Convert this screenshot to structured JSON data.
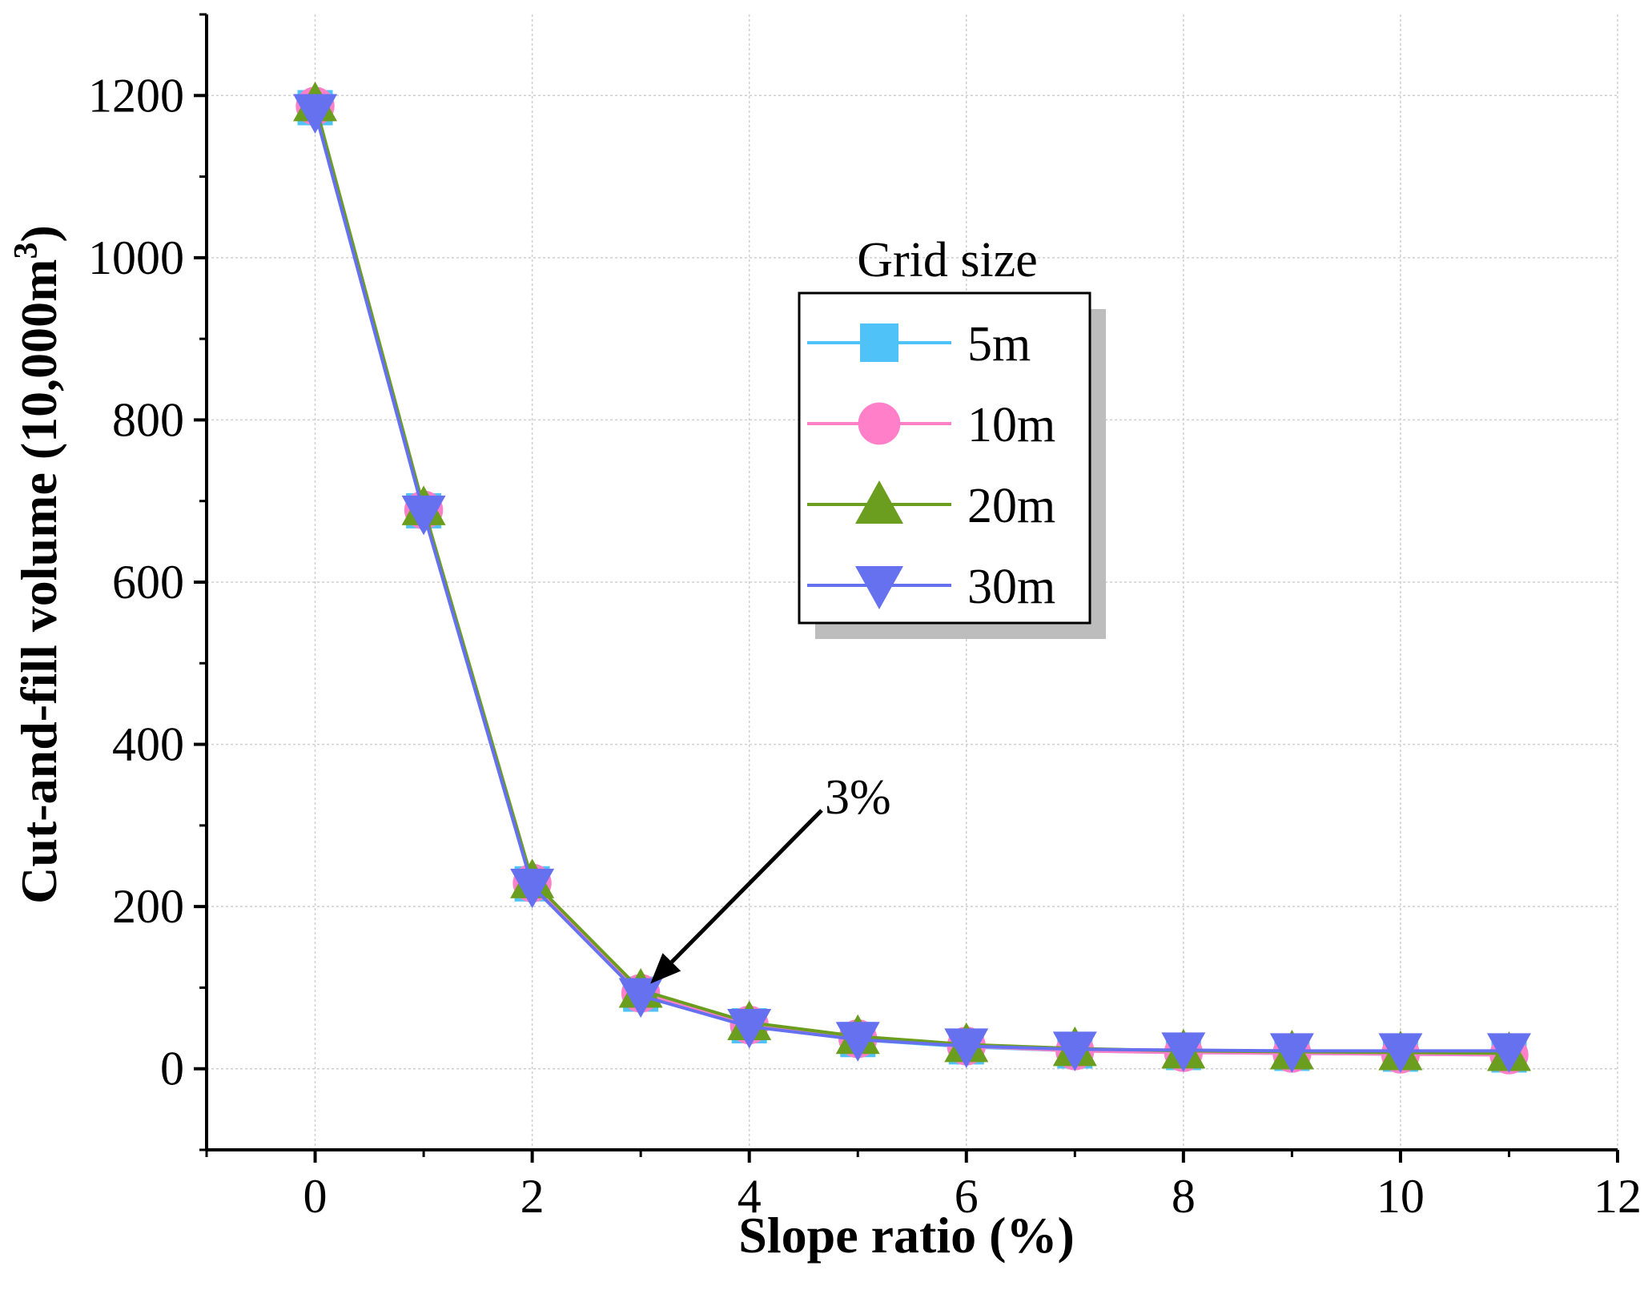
{
  "chart_data": {
    "type": "line",
    "title": "",
    "xlabel": "Slope ratio (%)",
    "ylabel_main": "Cut-and-fill volume (10,000m",
    "ylabel_sup": "3",
    "ylabel_close": ")",
    "xlim": [
      -1,
      12
    ],
    "ylim": [
      -100,
      1300
    ],
    "xticks": [
      0,
      2,
      4,
      6,
      8,
      10,
      12
    ],
    "xtick_labels": [
      "0",
      "2",
      "4",
      "6",
      "8",
      "10",
      "12"
    ],
    "yticks": [
      0,
      200,
      400,
      600,
      800,
      1000,
      1200
    ],
    "ytick_labels": [
      "0",
      "200",
      "400",
      "600",
      "800",
      "1000",
      "1200"
    ],
    "grid": true,
    "legend_title": "Grid size",
    "legend_position": "center-right",
    "x": [
      0,
      1,
      2,
      3,
      4,
      5,
      6,
      7,
      8,
      9,
      10,
      11
    ],
    "series": [
      {
        "name": "5m",
        "marker": "square",
        "color": "#4FC3F7",
        "values": [
          1185,
          688,
          228,
          92,
          53,
          36,
          27,
          22,
          20,
          19,
          18,
          17
        ]
      },
      {
        "name": "10m",
        "marker": "circle",
        "color": "#FF7FC8",
        "values": [
          1187,
          689,
          229,
          93,
          54,
          37,
          28,
          22,
          20,
          19,
          18,
          17
        ]
      },
      {
        "name": "20m",
        "marker": "triangle-up",
        "color": "#6B9E1F",
        "values": [
          1190,
          692,
          232,
          97,
          57,
          40,
          30,
          25,
          22,
          21,
          20,
          19
        ]
      },
      {
        "name": "30m",
        "marker": "triangle-down",
        "color": "#6671F0",
        "values": [
          1180,
          685,
          225,
          90,
          52,
          36,
          28,
          24,
          23,
          22,
          22,
          22
        ]
      }
    ],
    "annotations": [
      {
        "text": "3%",
        "arrow_to": [
          3,
          97
        ],
        "text_at": [
          4.8,
          320
        ]
      }
    ]
  }
}
